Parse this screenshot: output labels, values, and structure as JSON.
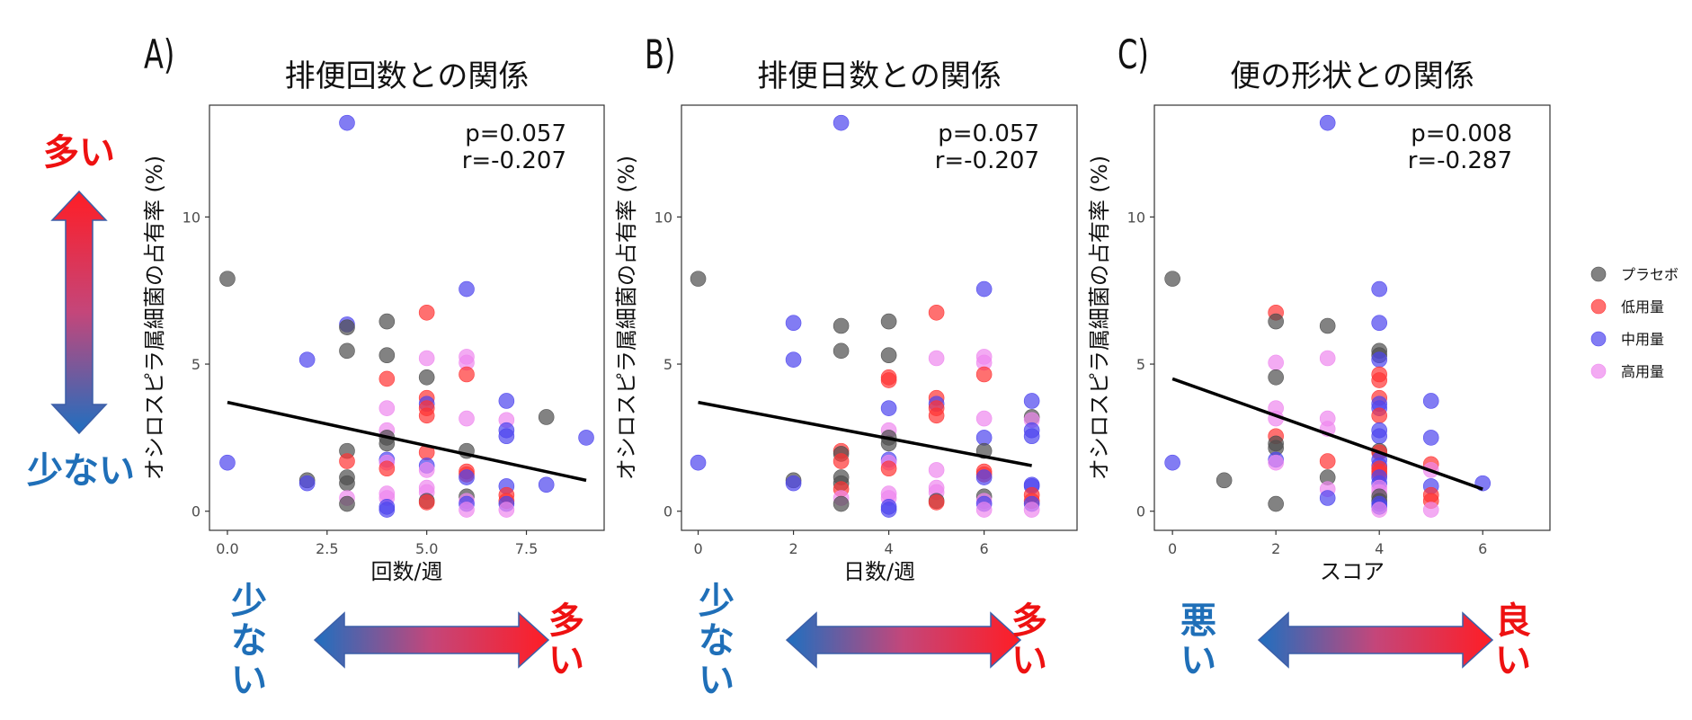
{
  "colors": {
    "placebo": "#4d4d4d",
    "low": "#ff3333",
    "mid": "#4d44ee",
    "high": "#ee88ee",
    "red_text": "#ee1111",
    "blue_text": "#1f6fb8",
    "arrow_red": "#ff1d25",
    "arrow_blue": "#1f6fc0"
  },
  "left_indicator": {
    "top_label": "多い",
    "bottom_label": "少ない"
  },
  "legend": {
    "items": [
      {
        "key": "placebo",
        "label": "プラセボ"
      },
      {
        "key": "low",
        "label": "低用量"
      },
      {
        "key": "mid",
        "label": "中用量"
      },
      {
        "key": "high",
        "label": "高用量"
      }
    ]
  },
  "panels": [
    {
      "letter": "A)",
      "arrow_left_label": "少ない",
      "arrow_right_label": "多い",
      "left_color": "blue",
      "right_color": "red"
    },
    {
      "letter": "B)",
      "arrow_left_label": "少ない",
      "arrow_right_label": "多い",
      "left_color": "blue",
      "right_color": "red"
    },
    {
      "letter": "C)",
      "arrow_left_label": "悪い",
      "arrow_right_label": "良い",
      "left_color": "blue",
      "right_color": "red"
    }
  ],
  "chart_data": [
    {
      "type": "scatter",
      "title": "排便回数との関係",
      "xlabel": "回数/週",
      "ylabel": "オシロスピラ属細菌の占有率 (%)",
      "xlim": [
        -0.45,
        9.45
      ],
      "ylim": [
        -0.65,
        13.8
      ],
      "xticks": [
        0.0,
        2.5,
        5.0,
        7.5
      ],
      "xtick_labels": [
        "0.0",
        "2.5",
        "5.0",
        "7.5"
      ],
      "yticks": [
        0,
        5,
        10
      ],
      "ytick_labels": [
        "0",
        "5",
        "10"
      ],
      "stats": {
        "p": "p=0.057",
        "r": "r=-0.207"
      },
      "trend": {
        "x1": 0,
        "y1": 3.7,
        "x2": 9,
        "y2": 1.05
      },
      "points": [
        {
          "x": 0,
          "y": 7.9,
          "g": "placebo"
        },
        {
          "x": 0,
          "y": 1.65,
          "g": "mid"
        },
        {
          "x": 2,
          "y": 5.15,
          "g": "mid"
        },
        {
          "x": 2,
          "y": 1.05,
          "g": "placebo"
        },
        {
          "x": 2,
          "y": 0.95,
          "g": "mid"
        },
        {
          "x": 3,
          "y": 13.2,
          "g": "mid"
        },
        {
          "x": 3,
          "y": 6.35,
          "g": "mid"
        },
        {
          "x": 3,
          "y": 6.25,
          "g": "placebo"
        },
        {
          "x": 3,
          "y": 5.45,
          "g": "placebo"
        },
        {
          "x": 3,
          "y": 2.05,
          "g": "placebo"
        },
        {
          "x": 3,
          "y": 1.7,
          "g": "low"
        },
        {
          "x": 3,
          "y": 1.15,
          "g": "placebo"
        },
        {
          "x": 3,
          "y": 0.95,
          "g": "placebo"
        },
        {
          "x": 3,
          "y": 0.45,
          "g": "high"
        },
        {
          "x": 3,
          "y": 0.25,
          "g": "placebo"
        },
        {
          "x": 4,
          "y": 6.45,
          "g": "placebo"
        },
        {
          "x": 4,
          "y": 5.3,
          "g": "placebo"
        },
        {
          "x": 4,
          "y": 4.5,
          "g": "low"
        },
        {
          "x": 4,
          "y": 3.5,
          "g": "high"
        },
        {
          "x": 4,
          "y": 2.75,
          "g": "high"
        },
        {
          "x": 4,
          "y": 2.5,
          "g": "placebo"
        },
        {
          "x": 4,
          "y": 2.3,
          "g": "placebo"
        },
        {
          "x": 4,
          "y": 1.75,
          "g": "mid"
        },
        {
          "x": 4,
          "y": 1.65,
          "g": "high"
        },
        {
          "x": 4,
          "y": 1.45,
          "g": "low"
        },
        {
          "x": 4,
          "y": 0.6,
          "g": "high"
        },
        {
          "x": 4,
          "y": 0.45,
          "g": "high"
        },
        {
          "x": 4,
          "y": 0.15,
          "g": "mid"
        },
        {
          "x": 4,
          "y": 0.05,
          "g": "mid"
        },
        {
          "x": 5,
          "y": 6.75,
          "g": "low"
        },
        {
          "x": 5,
          "y": 5.2,
          "g": "high"
        },
        {
          "x": 5,
          "y": 4.55,
          "g": "placebo"
        },
        {
          "x": 5,
          "y": 3.85,
          "g": "low"
        },
        {
          "x": 5,
          "y": 3.65,
          "g": "mid"
        },
        {
          "x": 5,
          "y": 3.5,
          "g": "low"
        },
        {
          "x": 5,
          "y": 3.25,
          "g": "low"
        },
        {
          "x": 5,
          "y": 2.0,
          "g": "low"
        },
        {
          "x": 5,
          "y": 1.55,
          "g": "mid"
        },
        {
          "x": 5,
          "y": 1.4,
          "g": "high"
        },
        {
          "x": 5,
          "y": 0.8,
          "g": "high"
        },
        {
          "x": 5,
          "y": 0.65,
          "g": "high"
        },
        {
          "x": 5,
          "y": 0.35,
          "g": "placebo"
        },
        {
          "x": 5,
          "y": 0.3,
          "g": "low"
        },
        {
          "x": 6,
          "y": 7.55,
          "g": "mid"
        },
        {
          "x": 6,
          "y": 5.25,
          "g": "high"
        },
        {
          "x": 6,
          "y": 5.05,
          "g": "high"
        },
        {
          "x": 6,
          "y": 4.65,
          "g": "low"
        },
        {
          "x": 6,
          "y": 3.15,
          "g": "high"
        },
        {
          "x": 6,
          "y": 2.05,
          "g": "placebo"
        },
        {
          "x": 6,
          "y": 1.35,
          "g": "low"
        },
        {
          "x": 6,
          "y": 1.25,
          "g": "low"
        },
        {
          "x": 6,
          "y": 1.15,
          "g": "mid"
        },
        {
          "x": 6,
          "y": 0.5,
          "g": "placebo"
        },
        {
          "x": 6,
          "y": 0.35,
          "g": "high"
        },
        {
          "x": 6,
          "y": 0.25,
          "g": "mid"
        },
        {
          "x": 6,
          "y": 0.05,
          "g": "high"
        },
        {
          "x": 7,
          "y": 3.75,
          "g": "mid"
        },
        {
          "x": 7,
          "y": 3.1,
          "g": "high"
        },
        {
          "x": 7,
          "y": 2.75,
          "g": "mid"
        },
        {
          "x": 7,
          "y": 2.55,
          "g": "mid"
        },
        {
          "x": 7,
          "y": 0.85,
          "g": "mid"
        },
        {
          "x": 7,
          "y": 0.55,
          "g": "low"
        },
        {
          "x": 7,
          "y": 0.35,
          "g": "low"
        },
        {
          "x": 7,
          "y": 0.25,
          "g": "mid"
        },
        {
          "x": 7,
          "y": 0.05,
          "g": "high"
        },
        {
          "x": 8,
          "y": 3.2,
          "g": "placebo"
        },
        {
          "x": 8,
          "y": 0.9,
          "g": "mid"
        },
        {
          "x": 9,
          "y": 2.5,
          "g": "mid"
        }
      ]
    },
    {
      "type": "scatter",
      "title": "排便日数との関係",
      "xlabel": "日数/週",
      "ylabel": "オシロスピラ属細菌の占有率 (%)",
      "xlim": [
        -0.35,
        7.95
      ],
      "ylim": [
        -0.65,
        13.8
      ],
      "xticks": [
        0,
        2,
        4,
        6
      ],
      "xtick_labels": [
        "0",
        "2",
        "4",
        "6"
      ],
      "yticks": [
        0,
        5,
        10
      ],
      "ytick_labels": [
        "0",
        "5",
        "10"
      ],
      "stats": {
        "p": "p=0.057",
        "r": "r=-0.207"
      },
      "trend": {
        "x1": 0,
        "y1": 3.7,
        "x2": 7,
        "y2": 1.55
      },
      "points": [
        {
          "x": 0,
          "y": 7.9,
          "g": "placebo"
        },
        {
          "x": 0,
          "y": 1.65,
          "g": "mid"
        },
        {
          "x": 2,
          "y": 6.4,
          "g": "mid"
        },
        {
          "x": 2,
          "y": 5.15,
          "g": "mid"
        },
        {
          "x": 2,
          "y": 1.05,
          "g": "placebo"
        },
        {
          "x": 2,
          "y": 0.95,
          "g": "mid"
        },
        {
          "x": 3,
          "y": 13.2,
          "g": "mid"
        },
        {
          "x": 3,
          "y": 6.3,
          "g": "placebo"
        },
        {
          "x": 3,
          "y": 5.45,
          "g": "placebo"
        },
        {
          "x": 3,
          "y": 2.05,
          "g": "low"
        },
        {
          "x": 3,
          "y": 1.95,
          "g": "placebo"
        },
        {
          "x": 3,
          "y": 1.7,
          "g": "low"
        },
        {
          "x": 3,
          "y": 1.15,
          "g": "placebo"
        },
        {
          "x": 3,
          "y": 0.95,
          "g": "placebo"
        },
        {
          "x": 3,
          "y": 0.75,
          "g": "low"
        },
        {
          "x": 3,
          "y": 0.45,
          "g": "high"
        },
        {
          "x": 3,
          "y": 0.25,
          "g": "placebo"
        },
        {
          "x": 4,
          "y": 6.45,
          "g": "placebo"
        },
        {
          "x": 4,
          "y": 5.3,
          "g": "placebo"
        },
        {
          "x": 4,
          "y": 4.55,
          "g": "low"
        },
        {
          "x": 4,
          "y": 4.45,
          "g": "low"
        },
        {
          "x": 4,
          "y": 3.5,
          "g": "mid"
        },
        {
          "x": 4,
          "y": 2.75,
          "g": "high"
        },
        {
          "x": 4,
          "y": 2.5,
          "g": "placebo"
        },
        {
          "x": 4,
          "y": 2.3,
          "g": "placebo"
        },
        {
          "x": 4,
          "y": 1.75,
          "g": "mid"
        },
        {
          "x": 4,
          "y": 1.65,
          "g": "high"
        },
        {
          "x": 4,
          "y": 1.45,
          "g": "low"
        },
        {
          "x": 4,
          "y": 0.6,
          "g": "high"
        },
        {
          "x": 4,
          "y": 0.45,
          "g": "high"
        },
        {
          "x": 4,
          "y": 0.15,
          "g": "mid"
        },
        {
          "x": 4,
          "y": 0.05,
          "g": "mid"
        },
        {
          "x": 5,
          "y": 6.75,
          "g": "low"
        },
        {
          "x": 5,
          "y": 5.2,
          "g": "high"
        },
        {
          "x": 5,
          "y": 3.85,
          "g": "low"
        },
        {
          "x": 5,
          "y": 3.65,
          "g": "mid"
        },
        {
          "x": 5,
          "y": 3.5,
          "g": "low"
        },
        {
          "x": 5,
          "y": 3.25,
          "g": "low"
        },
        {
          "x": 5,
          "y": 1.4,
          "g": "high"
        },
        {
          "x": 5,
          "y": 0.8,
          "g": "high"
        },
        {
          "x": 5,
          "y": 0.65,
          "g": "high"
        },
        {
          "x": 5,
          "y": 0.35,
          "g": "placebo"
        },
        {
          "x": 5,
          "y": 0.3,
          "g": "low"
        },
        {
          "x": 6,
          "y": 7.55,
          "g": "mid"
        },
        {
          "x": 6,
          "y": 5.25,
          "g": "high"
        },
        {
          "x": 6,
          "y": 5.05,
          "g": "high"
        },
        {
          "x": 6,
          "y": 4.65,
          "g": "low"
        },
        {
          "x": 6,
          "y": 3.15,
          "g": "high"
        },
        {
          "x": 6,
          "y": 2.5,
          "g": "mid"
        },
        {
          "x": 6,
          "y": 2.05,
          "g": "placebo"
        },
        {
          "x": 6,
          "y": 1.35,
          "g": "low"
        },
        {
          "x": 6,
          "y": 1.25,
          "g": "low"
        },
        {
          "x": 6,
          "y": 1.15,
          "g": "mid"
        },
        {
          "x": 6,
          "y": 0.5,
          "g": "placebo"
        },
        {
          "x": 6,
          "y": 0.35,
          "g": "high"
        },
        {
          "x": 6,
          "y": 0.25,
          "g": "mid"
        },
        {
          "x": 6,
          "y": 0.05,
          "g": "high"
        },
        {
          "x": 7,
          "y": 3.75,
          "g": "mid"
        },
        {
          "x": 7,
          "y": 3.2,
          "g": "placebo"
        },
        {
          "x": 7,
          "y": 3.1,
          "g": "high"
        },
        {
          "x": 7,
          "y": 2.75,
          "g": "mid"
        },
        {
          "x": 7,
          "y": 2.55,
          "g": "mid"
        },
        {
          "x": 7,
          "y": 0.9,
          "g": "mid"
        },
        {
          "x": 7,
          "y": 0.85,
          "g": "mid"
        },
        {
          "x": 7,
          "y": 0.55,
          "g": "low"
        },
        {
          "x": 7,
          "y": 0.35,
          "g": "low"
        },
        {
          "x": 7,
          "y": 0.25,
          "g": "mid"
        },
        {
          "x": 7,
          "y": 0.05,
          "g": "high"
        }
      ]
    },
    {
      "type": "scatter",
      "title": "便の形状との関係",
      "xlabel": "スコア",
      "ylabel": "オシロスピラ属細菌の占有率 (%)",
      "xlim": [
        -0.35,
        7.3
      ],
      "ylim": [
        -0.65,
        13.8
      ],
      "xticks": [
        0,
        2,
        4,
        6
      ],
      "xtick_labels": [
        "0",
        "2",
        "4",
        "6"
      ],
      "yticks": [
        0,
        5,
        10
      ],
      "ytick_labels": [
        "0",
        "5",
        "10"
      ],
      "stats": {
        "p": "p=0.008",
        "r": "r=-0.287"
      },
      "trend": {
        "x1": 0,
        "y1": 4.5,
        "x2": 6,
        "y2": 0.75
      },
      "points": [
        {
          "x": 0,
          "y": 7.9,
          "g": "placebo"
        },
        {
          "x": 0,
          "y": 1.65,
          "g": "mid"
        },
        {
          "x": 1,
          "y": 1.05,
          "g": "placebo"
        },
        {
          "x": 2,
          "y": 6.75,
          "g": "low"
        },
        {
          "x": 2,
          "y": 6.45,
          "g": "placebo"
        },
        {
          "x": 2,
          "y": 5.05,
          "g": "high"
        },
        {
          "x": 2,
          "y": 4.55,
          "g": "placebo"
        },
        {
          "x": 2,
          "y": 3.5,
          "g": "high"
        },
        {
          "x": 2,
          "y": 3.15,
          "g": "high"
        },
        {
          "x": 2,
          "y": 2.55,
          "g": "low"
        },
        {
          "x": 2,
          "y": 2.3,
          "g": "placebo"
        },
        {
          "x": 2,
          "y": 2.15,
          "g": "placebo"
        },
        {
          "x": 2,
          "y": 1.75,
          "g": "mid"
        },
        {
          "x": 2,
          "y": 1.65,
          "g": "high"
        },
        {
          "x": 2,
          "y": 0.25,
          "g": "placebo"
        },
        {
          "x": 3,
          "y": 13.2,
          "g": "mid"
        },
        {
          "x": 3,
          "y": 6.3,
          "g": "placebo"
        },
        {
          "x": 3,
          "y": 5.2,
          "g": "high"
        },
        {
          "x": 3,
          "y": 3.15,
          "g": "high"
        },
        {
          "x": 3,
          "y": 2.8,
          "g": "high"
        },
        {
          "x": 3,
          "y": 1.7,
          "g": "low"
        },
        {
          "x": 3,
          "y": 1.15,
          "g": "placebo"
        },
        {
          "x": 3,
          "y": 0.75,
          "g": "high"
        },
        {
          "x": 3,
          "y": 0.45,
          "g": "mid"
        },
        {
          "x": 4,
          "y": 7.55,
          "g": "mid"
        },
        {
          "x": 4,
          "y": 6.4,
          "g": "mid"
        },
        {
          "x": 4,
          "y": 5.45,
          "g": "placebo"
        },
        {
          "x": 4,
          "y": 5.3,
          "g": "placebo"
        },
        {
          "x": 4,
          "y": 5.15,
          "g": "mid"
        },
        {
          "x": 4,
          "y": 4.65,
          "g": "low"
        },
        {
          "x": 4,
          "y": 4.45,
          "g": "low"
        },
        {
          "x": 4,
          "y": 3.85,
          "g": "low"
        },
        {
          "x": 4,
          "y": 3.65,
          "g": "mid"
        },
        {
          "x": 4,
          "y": 3.5,
          "g": "mid"
        },
        {
          "x": 4,
          "y": 3.25,
          "g": "low"
        },
        {
          "x": 4,
          "y": 2.75,
          "g": "mid"
        },
        {
          "x": 4,
          "y": 2.55,
          "g": "mid"
        },
        {
          "x": 4,
          "y": 2.05,
          "g": "placebo"
        },
        {
          "x": 4,
          "y": 2.0,
          "g": "low"
        },
        {
          "x": 4,
          "y": 1.75,
          "g": "mid"
        },
        {
          "x": 4,
          "y": 1.55,
          "g": "mid"
        },
        {
          "x": 4,
          "y": 1.45,
          "g": "low"
        },
        {
          "x": 4,
          "y": 1.35,
          "g": "low"
        },
        {
          "x": 4,
          "y": 1.25,
          "g": "low"
        },
        {
          "x": 4,
          "y": 1.15,
          "g": "mid"
        },
        {
          "x": 4,
          "y": 0.95,
          "g": "mid"
        },
        {
          "x": 4,
          "y": 0.8,
          "g": "high"
        },
        {
          "x": 4,
          "y": 0.65,
          "g": "high"
        },
        {
          "x": 4,
          "y": 0.5,
          "g": "placebo"
        },
        {
          "x": 4,
          "y": 0.35,
          "g": "placebo"
        },
        {
          "x": 4,
          "y": 0.25,
          "g": "mid"
        },
        {
          "x": 4,
          "y": 0.15,
          "g": "mid"
        },
        {
          "x": 4,
          "y": 0.05,
          "g": "high"
        },
        {
          "x": 5,
          "y": 3.75,
          "g": "mid"
        },
        {
          "x": 5,
          "y": 2.5,
          "g": "mid"
        },
        {
          "x": 5,
          "y": 1.6,
          "g": "low"
        },
        {
          "x": 5,
          "y": 1.4,
          "g": "high"
        },
        {
          "x": 5,
          "y": 0.85,
          "g": "mid"
        },
        {
          "x": 5,
          "y": 0.55,
          "g": "low"
        },
        {
          "x": 5,
          "y": 0.35,
          "g": "low"
        },
        {
          "x": 5,
          "y": 0.05,
          "g": "high"
        },
        {
          "x": 6,
          "y": 0.95,
          "g": "mid"
        }
      ]
    }
  ]
}
